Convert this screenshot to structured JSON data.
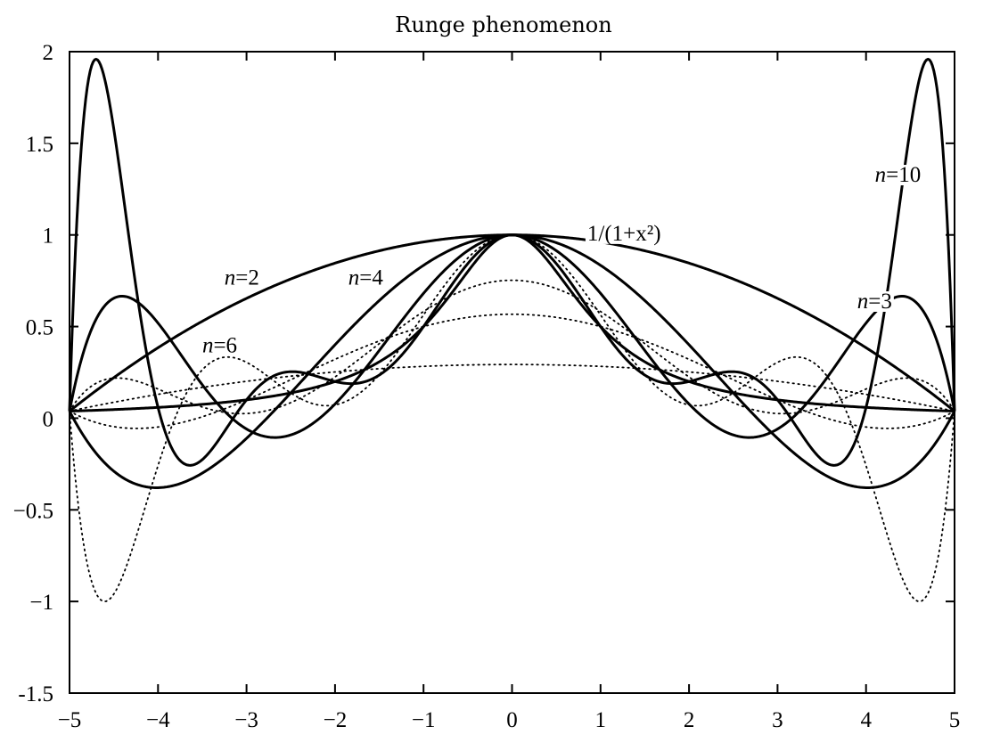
{
  "chart_data": {
    "type": "line",
    "title": "Runge phenomenon",
    "xlabel": "",
    "ylabel": "",
    "xlim": [
      -5,
      5
    ],
    "ylim": [
      -1.5,
      2
    ],
    "grid": false,
    "x_ticks": [
      "−5",
      "−4",
      "−3",
      "−2",
      "−1",
      "0",
      "1",
      "2",
      "3",
      "4",
      "5"
    ],
    "y_ticks": [
      "-1.5",
      "−1",
      "−0.5",
      "0",
      "0.5",
      "1",
      "1.5",
      "2"
    ],
    "series": [
      {
        "name": "1/(1+x²)",
        "style": "solid",
        "kind": "function"
      },
      {
        "name": "n=2",
        "style": "solid",
        "kind": "interpolant",
        "degree": 2
      },
      {
        "name": "n=3",
        "style": "solid",
        "kind": "interpolant",
        "degree": 4
      },
      {
        "name": "n=4",
        "style": "solid",
        "kind": "interpolant",
        "degree": 6
      },
      {
        "name": "n=10",
        "style": "solid",
        "kind": "interpolant",
        "degree": 10
      },
      {
        "style": "dotted",
        "kind": "interpolant",
        "degree": 3
      },
      {
        "name": "n=6",
        "style": "dotted",
        "kind": "interpolant",
        "degree": 5
      },
      {
        "style": "dotted",
        "kind": "interpolant",
        "degree": 7
      },
      {
        "style": "dotted",
        "kind": "interpolant",
        "degree": 8
      }
    ],
    "annotations": [
      {
        "var": "n",
        "text": "=2",
        "x": -3.25,
        "y": 0.73
      },
      {
        "var": "n",
        "text": "=4",
        "x": -1.85,
        "y": 0.73
      },
      {
        "var": "n",
        "text": "=6",
        "x": -3.5,
        "y": 0.36
      },
      {
        "var": "n",
        "text": "=10",
        "x": 4.1,
        "y": 1.29
      },
      {
        "var": "n",
        "text": "=3",
        "x": 3.9,
        "y": 0.6
      },
      {
        "text": "1/(1+x²)",
        "x": 0.85,
        "y": 0.97
      }
    ]
  }
}
